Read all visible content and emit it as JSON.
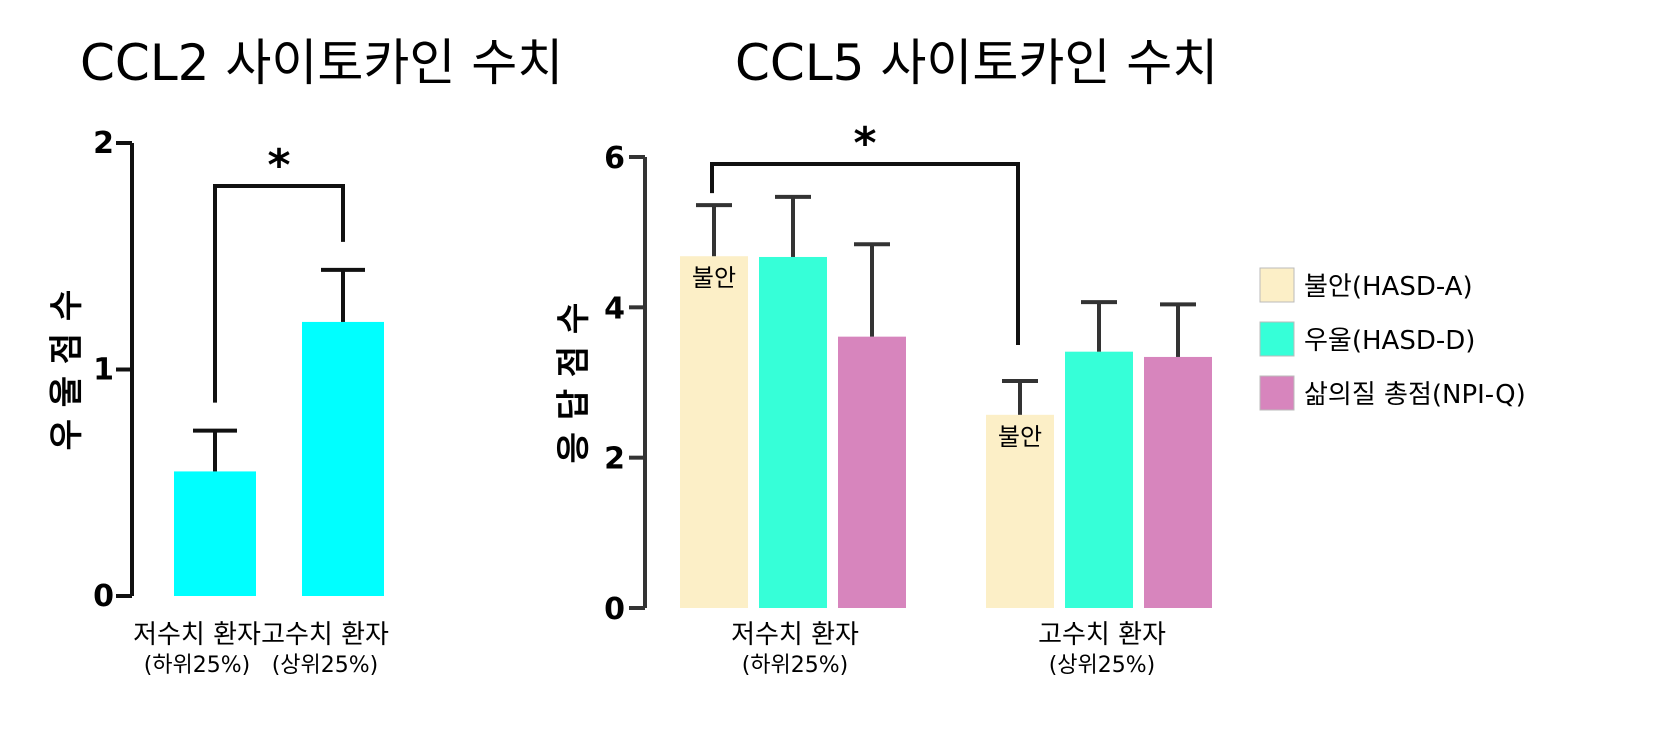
{
  "chart_data": [
    {
      "type": "bar",
      "title": "CCL2 사이토카인 수치",
      "ylabel": "우 울 점 수",
      "ylim": [
        0,
        2
      ],
      "yticks": [
        "0",
        "1",
        "2"
      ],
      "categories": [
        {
          "line1": "저수치 환자",
          "line2": "(하위25%)"
        },
        {
          "line1": "고수치 환자",
          "line2": "(상위25%)"
        }
      ],
      "series": [
        {
          "color": "#00ffff",
          "values": [
            0.55,
            1.21
          ],
          "errors": [
            0.18,
            0.23
          ]
        }
      ],
      "significance": {
        "label": "*",
        "from": 0,
        "to": 1
      }
    },
    {
      "type": "bar",
      "title": "CCL5 사이토카인 수치",
      "ylabel": "응 답 점 수",
      "ylim": [
        0,
        6
      ],
      "yticks": [
        "0",
        "2",
        "4",
        "6"
      ],
      "categories": [
        {
          "line1": "저수치 환자",
          "line2": "(하위25%)"
        },
        {
          "line1": "고수치 환자",
          "line2": "(상위25%)"
        }
      ],
      "series": [
        {
          "name": "불안(HASD-A)",
          "color": "#fcefc7",
          "values": [
            4.68,
            2.57
          ],
          "errors": [
            0.68,
            0.45
          ]
        },
        {
          "name": "우울(HASD-D)",
          "color": "#36ffd8",
          "values": [
            4.67,
            3.41
          ],
          "errors": [
            0.8,
            0.66
          ]
        },
        {
          "name": "삶의질 총점(NPI-Q)",
          "color": "#d785bd",
          "values": [
            3.61,
            3.34
          ],
          "errors": [
            1.23,
            0.7
          ]
        }
      ],
      "bar_label": "불안",
      "significance": {
        "label": "*",
        "from": 0,
        "to": 1
      },
      "legend": "right"
    }
  ]
}
